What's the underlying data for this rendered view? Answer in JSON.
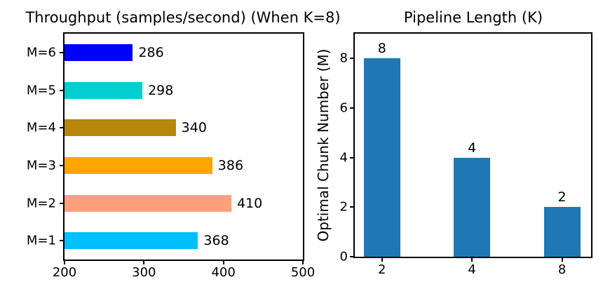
{
  "figure": {
    "background": "#ffffff",
    "text_color": "#000000",
    "spine_color": "#000000"
  },
  "chart_data": [
    {
      "type": "bar",
      "orientation": "horizontal",
      "title": "Throughput (samples/second) (When K=8)",
      "categories": [
        "M=6",
        "M=5",
        "M=4",
        "M=3",
        "M=2",
        "M=1"
      ],
      "values": [
        286,
        298,
        340,
        386,
        410,
        368
      ],
      "value_labels": [
        "286",
        "298",
        "340",
        "386",
        "410",
        "368"
      ],
      "bar_colors": [
        "#0000FF",
        "#00CED1",
        "#B8860B",
        "#FFA500",
        "#FFA07A",
        "#00BFFF"
      ],
      "xlim": [
        200,
        500
      ],
      "xticks": [
        "200",
        "300",
        "400",
        "500"
      ],
      "xtick_values": [
        200,
        300,
        400,
        500
      ],
      "xlabel": "",
      "ylabel": "",
      "grid": false,
      "legend": null
    },
    {
      "type": "bar",
      "orientation": "vertical",
      "title": "Pipeline Length (K)",
      "categories": [
        "2",
        "4",
        "8"
      ],
      "values": [
        8,
        4,
        2
      ],
      "value_labels": [
        "8",
        "4",
        "2"
      ],
      "bar_color": "#1F77B4",
      "ylim": [
        0,
        9
      ],
      "yticks": [
        "0",
        "2",
        "4",
        "6",
        "8"
      ],
      "ytick_values": [
        0,
        2,
        4,
        6,
        8
      ],
      "xlabel": "",
      "ylabel": "Optimal Chunk Number (M)",
      "grid": false,
      "legend": null
    }
  ]
}
